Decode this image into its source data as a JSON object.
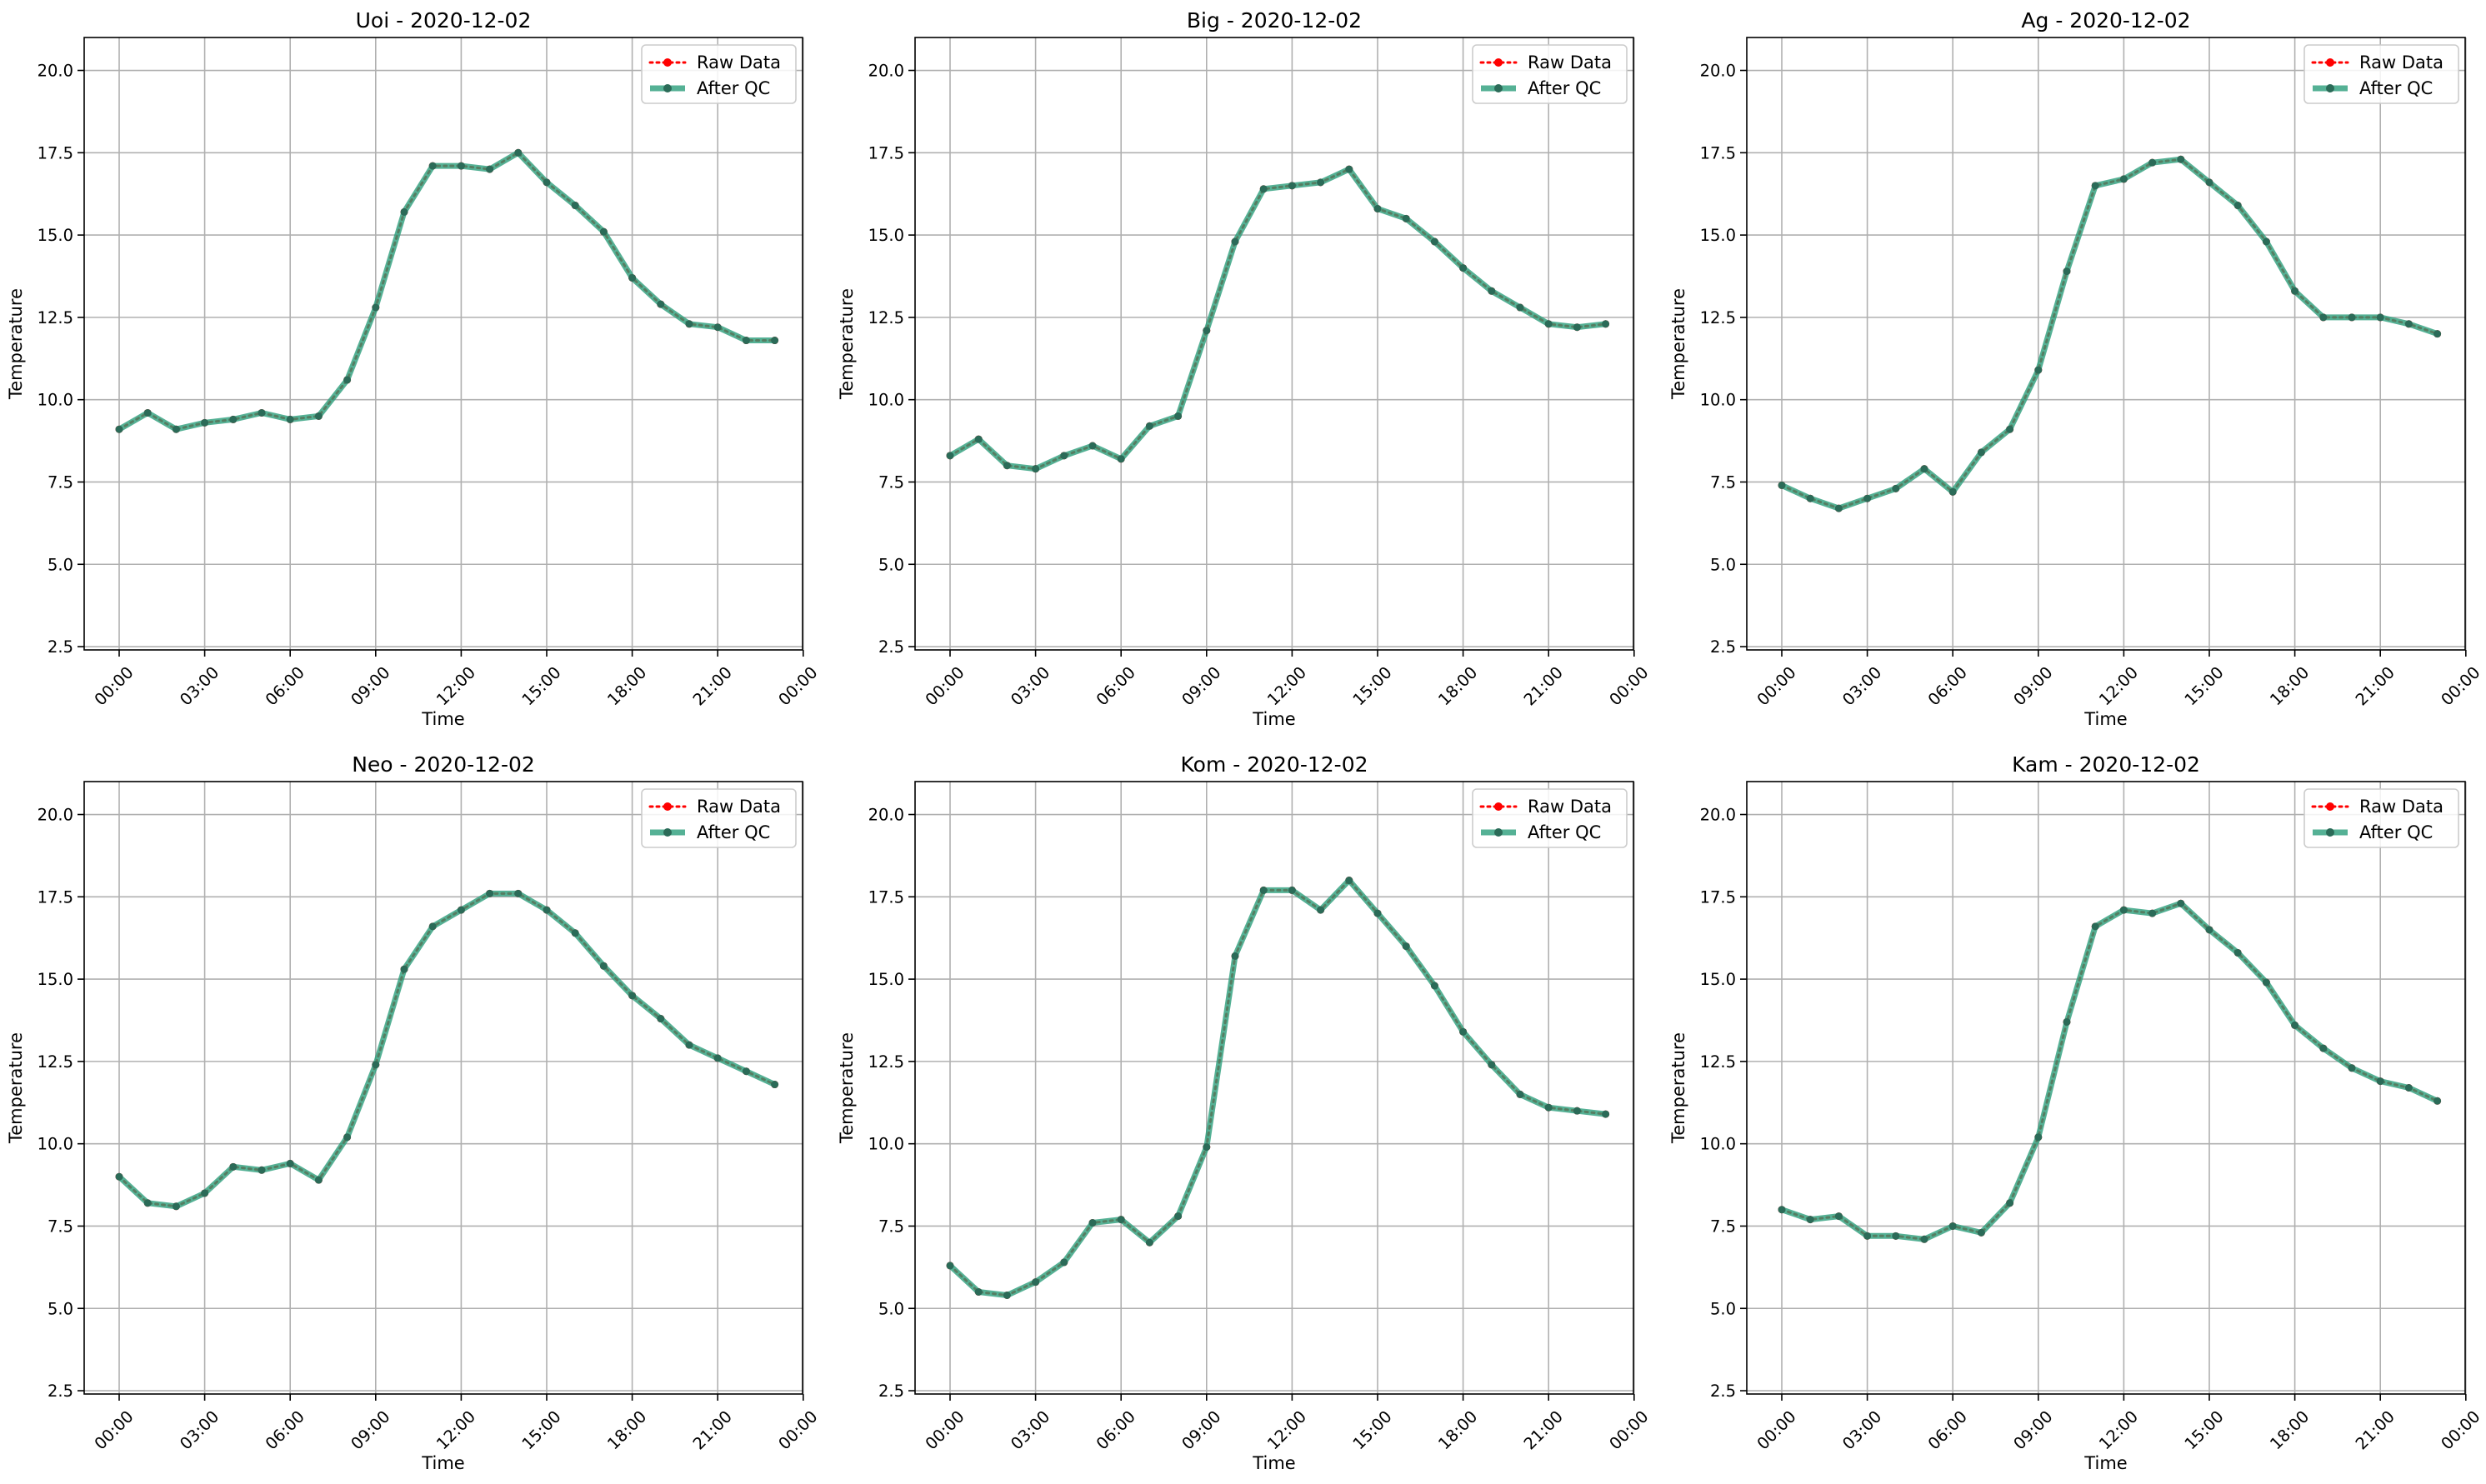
{
  "chart_data": [
    {
      "type": "line",
      "title": "Uoi - 2020-12-02",
      "xlabel": "Time",
      "ylabel": "Temperature",
      "ylim": [
        2.4,
        21.0
      ],
      "yticks": [
        "2.5",
        "5.0",
        "7.5",
        "10.0",
        "12.5",
        "15.0",
        "17.5",
        "20.0"
      ],
      "xticks": [
        "00:00",
        "03:00",
        "06:00",
        "09:00",
        "12:00",
        "15:00",
        "18:00",
        "21:00",
        "00:00"
      ],
      "grid": true,
      "legend_position": "top-right",
      "x": [
        "00:00",
        "01:00",
        "02:00",
        "03:00",
        "04:00",
        "05:00",
        "06:00",
        "07:00",
        "08:00",
        "09:00",
        "10:00",
        "11:00",
        "12:00",
        "13:00",
        "14:00",
        "15:00",
        "16:00",
        "17:00",
        "18:00",
        "19:00",
        "20:00",
        "21:00",
        "22:00",
        "23:00"
      ],
      "series": [
        {
          "name": "Raw Data",
          "color": "#ff0000",
          "style": "dotted-markers",
          "values": [
            9.1,
            9.6,
            9.1,
            9.3,
            9.4,
            9.6,
            9.4,
            9.5,
            10.6,
            12.8,
            15.7,
            17.1,
            17.1,
            17.0,
            17.5,
            16.6,
            15.9,
            15.1,
            13.7,
            12.9,
            12.3,
            12.2,
            11.8,
            11.8
          ]
        },
        {
          "name": "After QC",
          "color": "#2a9d7a",
          "style": "solid-thick",
          "values": [
            9.1,
            9.6,
            9.1,
            9.3,
            9.4,
            9.6,
            9.4,
            9.5,
            10.6,
            12.8,
            15.7,
            17.1,
            17.1,
            17.0,
            17.5,
            16.6,
            15.9,
            15.1,
            13.7,
            12.9,
            12.3,
            12.2,
            11.8,
            11.8
          ]
        }
      ]
    },
    {
      "type": "line",
      "title": "Big - 2020-12-02",
      "xlabel": "Time",
      "ylabel": "Temperature",
      "ylim": [
        2.4,
        21.0
      ],
      "yticks": [
        "2.5",
        "5.0",
        "7.5",
        "10.0",
        "12.5",
        "15.0",
        "17.5",
        "20.0"
      ],
      "xticks": [
        "00:00",
        "03:00",
        "06:00",
        "09:00",
        "12:00",
        "15:00",
        "18:00",
        "21:00",
        "00:00"
      ],
      "grid": true,
      "legend_position": "top-right",
      "x": [
        "00:00",
        "01:00",
        "02:00",
        "03:00",
        "04:00",
        "05:00",
        "06:00",
        "07:00",
        "08:00",
        "09:00",
        "10:00",
        "11:00",
        "12:00",
        "13:00",
        "14:00",
        "15:00",
        "16:00",
        "17:00",
        "18:00",
        "19:00",
        "20:00",
        "21:00",
        "22:00",
        "23:00"
      ],
      "series": [
        {
          "name": "Raw Data",
          "color": "#ff0000",
          "style": "dotted-markers",
          "values": [
            8.3,
            8.8,
            8.0,
            7.9,
            8.3,
            8.6,
            8.2,
            9.2,
            9.5,
            12.1,
            14.8,
            16.4,
            16.5,
            16.6,
            17.0,
            15.8,
            15.5,
            14.8,
            14.0,
            13.3,
            12.8,
            12.3,
            12.2,
            12.3
          ]
        },
        {
          "name": "After QC",
          "color": "#2a9d7a",
          "style": "solid-thick",
          "values": [
            8.3,
            8.8,
            8.0,
            7.9,
            8.3,
            8.6,
            8.2,
            9.2,
            9.5,
            12.1,
            14.8,
            16.4,
            16.5,
            16.6,
            17.0,
            15.8,
            15.5,
            14.8,
            14.0,
            13.3,
            12.8,
            12.3,
            12.2,
            12.3
          ]
        }
      ]
    },
    {
      "type": "line",
      "title": "Ag - 2020-12-02",
      "xlabel": "Time",
      "ylabel": "Temperature",
      "ylim": [
        2.4,
        21.0
      ],
      "yticks": [
        "2.5",
        "5.0",
        "7.5",
        "10.0",
        "12.5",
        "15.0",
        "17.5",
        "20.0"
      ],
      "xticks": [
        "00:00",
        "03:00",
        "06:00",
        "09:00",
        "12:00",
        "15:00",
        "18:00",
        "21:00",
        "00:00"
      ],
      "grid": true,
      "legend_position": "top-right",
      "x": [
        "00:00",
        "01:00",
        "02:00",
        "03:00",
        "04:00",
        "05:00",
        "06:00",
        "07:00",
        "08:00",
        "09:00",
        "10:00",
        "11:00",
        "12:00",
        "13:00",
        "14:00",
        "15:00",
        "16:00",
        "17:00",
        "18:00",
        "19:00",
        "20:00",
        "21:00",
        "22:00",
        "23:00"
      ],
      "series": [
        {
          "name": "Raw Data",
          "color": "#ff0000",
          "style": "dotted-markers",
          "values": [
            7.4,
            7.0,
            6.7,
            7.0,
            7.3,
            7.9,
            7.2,
            8.4,
            9.1,
            10.9,
            13.9,
            16.5,
            16.7,
            17.2,
            17.3,
            16.6,
            15.9,
            14.8,
            13.3,
            12.5,
            12.5,
            12.5,
            12.3,
            12.0
          ]
        },
        {
          "name": "After QC",
          "color": "#2a9d7a",
          "style": "solid-thick",
          "values": [
            7.4,
            7.0,
            6.7,
            7.0,
            7.3,
            7.9,
            7.2,
            8.4,
            9.1,
            10.9,
            13.9,
            16.5,
            16.7,
            17.2,
            17.3,
            16.6,
            15.9,
            14.8,
            13.3,
            12.5,
            12.5,
            12.5,
            12.3,
            12.0
          ]
        }
      ]
    },
    {
      "type": "line",
      "title": "Neo - 2020-12-02",
      "xlabel": "Time",
      "ylabel": "Temperature",
      "ylim": [
        2.4,
        21.0
      ],
      "yticks": [
        "2.5",
        "5.0",
        "7.5",
        "10.0",
        "12.5",
        "15.0",
        "17.5",
        "20.0"
      ],
      "xticks": [
        "00:00",
        "03:00",
        "06:00",
        "09:00",
        "12:00",
        "15:00",
        "18:00",
        "21:00",
        "00:00"
      ],
      "grid": true,
      "legend_position": "top-right",
      "x": [
        "00:00",
        "01:00",
        "02:00",
        "03:00",
        "04:00",
        "05:00",
        "06:00",
        "07:00",
        "08:00",
        "09:00",
        "10:00",
        "11:00",
        "12:00",
        "13:00",
        "14:00",
        "15:00",
        "16:00",
        "17:00",
        "18:00",
        "19:00",
        "20:00",
        "21:00",
        "22:00",
        "23:00"
      ],
      "series": [
        {
          "name": "Raw Data",
          "color": "#ff0000",
          "style": "dotted-markers",
          "values": [
            9.0,
            8.2,
            8.1,
            8.5,
            9.3,
            9.2,
            9.4,
            8.9,
            10.2,
            12.4,
            15.3,
            16.6,
            17.1,
            17.6,
            17.6,
            17.1,
            16.4,
            15.4,
            14.5,
            13.8,
            13.0,
            12.6,
            12.2,
            11.8
          ]
        },
        {
          "name": "After QC",
          "color": "#2a9d7a",
          "style": "solid-thick",
          "values": [
            9.0,
            8.2,
            8.1,
            8.5,
            9.3,
            9.2,
            9.4,
            8.9,
            10.2,
            12.4,
            15.3,
            16.6,
            17.1,
            17.6,
            17.6,
            17.1,
            16.4,
            15.4,
            14.5,
            13.8,
            13.0,
            12.6,
            12.2,
            11.8
          ]
        }
      ]
    },
    {
      "type": "line",
      "title": "Kom - 2020-12-02",
      "xlabel": "Time",
      "ylabel": "Temperature",
      "ylim": [
        2.4,
        21.0
      ],
      "yticks": [
        "2.5",
        "5.0",
        "7.5",
        "10.0",
        "12.5",
        "15.0",
        "17.5",
        "20.0"
      ],
      "xticks": [
        "00:00",
        "03:00",
        "06:00",
        "09:00",
        "12:00",
        "15:00",
        "18:00",
        "21:00",
        "00:00"
      ],
      "grid": true,
      "legend_position": "top-right",
      "x": [
        "00:00",
        "01:00",
        "02:00",
        "03:00",
        "04:00",
        "05:00",
        "06:00",
        "07:00",
        "08:00",
        "09:00",
        "10:00",
        "11:00",
        "12:00",
        "13:00",
        "14:00",
        "15:00",
        "16:00",
        "17:00",
        "18:00",
        "19:00",
        "20:00",
        "21:00",
        "22:00",
        "23:00"
      ],
      "series": [
        {
          "name": "Raw Data",
          "color": "#ff0000",
          "style": "dotted-markers",
          "values": [
            6.3,
            5.5,
            5.4,
            5.8,
            6.4,
            7.6,
            7.7,
            7.0,
            7.8,
            9.9,
            15.7,
            17.7,
            17.7,
            17.1,
            18.0,
            17.0,
            16.0,
            14.8,
            13.4,
            12.4,
            11.5,
            11.1,
            11.0,
            10.9
          ]
        },
        {
          "name": "After QC",
          "color": "#2a9d7a",
          "style": "solid-thick",
          "values": [
            6.3,
            5.5,
            5.4,
            5.8,
            6.4,
            7.6,
            7.7,
            7.0,
            7.8,
            9.9,
            15.7,
            17.7,
            17.7,
            17.1,
            18.0,
            17.0,
            16.0,
            14.8,
            13.4,
            12.4,
            11.5,
            11.1,
            11.0,
            10.9
          ]
        }
      ]
    },
    {
      "type": "line",
      "title": "Kam - 2020-12-02",
      "xlabel": "Time",
      "ylabel": "Temperature",
      "ylim": [
        2.4,
        21.0
      ],
      "yticks": [
        "2.5",
        "5.0",
        "7.5",
        "10.0",
        "12.5",
        "15.0",
        "17.5",
        "20.0"
      ],
      "xticks": [
        "00:00",
        "03:00",
        "06:00",
        "09:00",
        "12:00",
        "15:00",
        "18:00",
        "21:00",
        "00:00"
      ],
      "grid": true,
      "legend_position": "top-right",
      "x": [
        "00:00",
        "01:00",
        "02:00",
        "03:00",
        "04:00",
        "05:00",
        "06:00",
        "07:00",
        "08:00",
        "09:00",
        "10:00",
        "11:00",
        "12:00",
        "13:00",
        "14:00",
        "15:00",
        "16:00",
        "17:00",
        "18:00",
        "19:00",
        "20:00",
        "21:00",
        "22:00",
        "23:00"
      ],
      "series": [
        {
          "name": "Raw Data",
          "color": "#ff0000",
          "style": "dotted-markers",
          "values": [
            8.0,
            7.7,
            7.8,
            7.2,
            7.2,
            7.1,
            7.5,
            7.3,
            8.2,
            10.2,
            13.7,
            16.6,
            17.1,
            17.0,
            17.3,
            16.5,
            15.8,
            14.9,
            13.6,
            12.9,
            12.3,
            11.9,
            11.7,
            11.3
          ]
        },
        {
          "name": "After QC",
          "color": "#2a9d7a",
          "style": "solid-thick",
          "values": [
            8.0,
            7.7,
            7.8,
            7.2,
            7.2,
            7.1,
            7.5,
            7.3,
            8.2,
            10.2,
            13.7,
            16.6,
            17.1,
            17.0,
            17.3,
            16.5,
            15.8,
            14.9,
            13.6,
            12.9,
            12.3,
            11.9,
            11.7,
            11.3
          ]
        }
      ]
    }
  ]
}
